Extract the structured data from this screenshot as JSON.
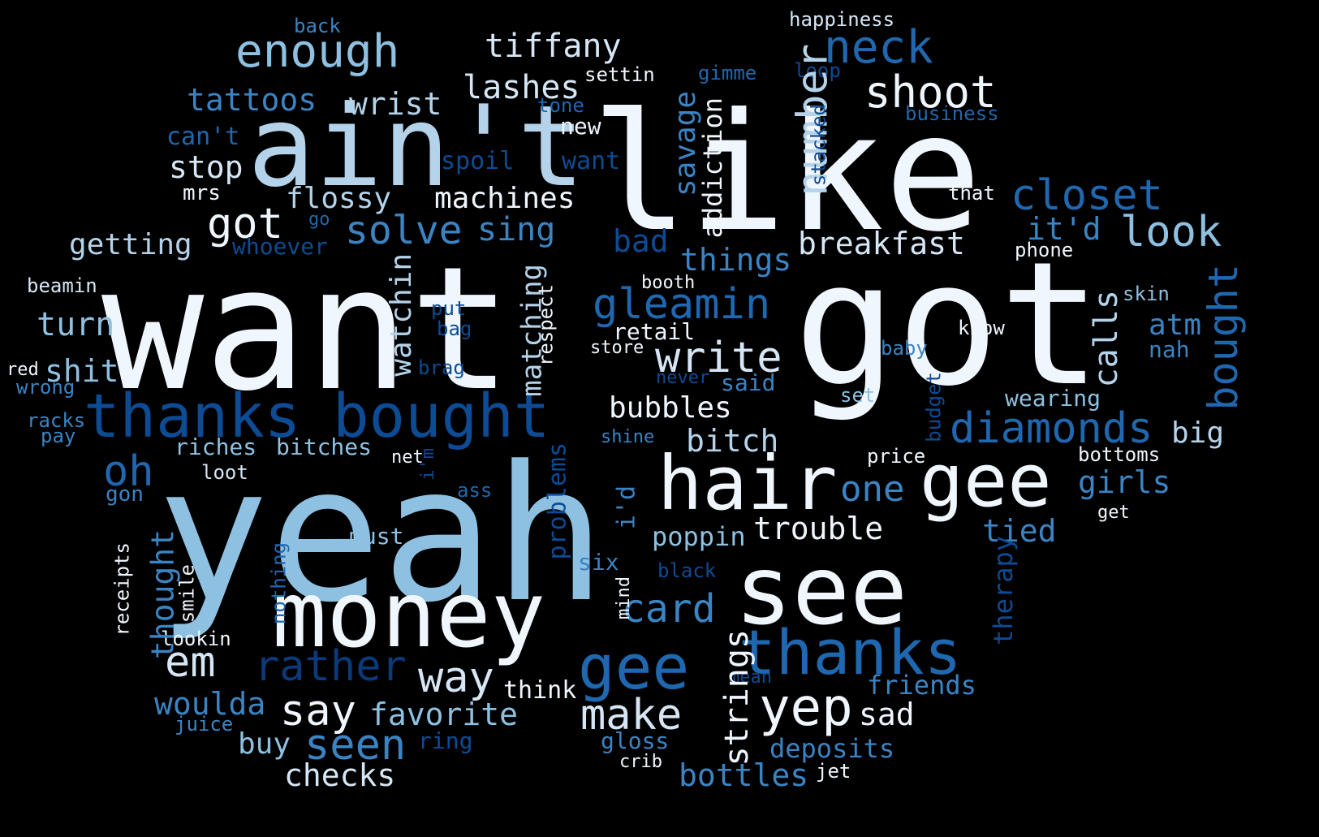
{
  "background": "#000000",
  "palette": {
    "white": "#f0f6fd",
    "pale": "#d6e6f5",
    "light": "#b4d3ea",
    "sky": "#8ec1e1",
    "mid": "#5ba3d2",
    "medium": "#3b84c3",
    "deep": "#1f68b0",
    "dark": "#0d4b94",
    "navy": "#0a3a7a"
  },
  "words": [
    {
      "text": "want",
      "color": "white"
    },
    {
      "text": "got",
      "color": "white"
    },
    {
      "text": "like",
      "color": "white"
    },
    {
      "text": "yeah",
      "color": "sky"
    },
    {
      "text": "ain't",
      "color": "light"
    },
    {
      "text": "money",
      "color": "white"
    },
    {
      "text": "see",
      "color": "white"
    },
    {
      "text": "hair",
      "color": "white"
    },
    {
      "text": "gee",
      "color": "white"
    },
    {
      "text": "thanks",
      "color": "deep"
    },
    {
      "text": "gee",
      "color": "deep"
    },
    {
      "text": "thanks",
      "color": "dark"
    },
    {
      "text": "bought",
      "color": "dark"
    },
    {
      "text": "enough",
      "color": "sky"
    },
    {
      "text": "neck",
      "color": "deep"
    },
    {
      "text": "shoot",
      "color": "white"
    },
    {
      "text": "tiffany",
      "color": "pale"
    },
    {
      "text": "lashes",
      "color": "pale"
    },
    {
      "text": "closet",
      "color": "deep"
    },
    {
      "text": "look",
      "color": "sky"
    },
    {
      "text": "gleamin",
      "color": "deep"
    },
    {
      "text": "write",
      "color": "pale"
    },
    {
      "text": "diamonds",
      "color": "deep"
    },
    {
      "text": "yep",
      "color": "white"
    },
    {
      "text": "rather",
      "color": "navy"
    },
    {
      "text": "way",
      "color": "pale"
    },
    {
      "text": "make",
      "color": "pale"
    },
    {
      "text": "say",
      "color": "white"
    },
    {
      "text": "seen",
      "color": "medium"
    },
    {
      "text": "em",
      "color": "pale"
    },
    {
      "text": "oh",
      "color": "deep"
    },
    {
      "text": "got",
      "color": "white"
    },
    {
      "text": "solve",
      "color": "medium"
    },
    {
      "text": "sing",
      "color": "medium"
    },
    {
      "text": "card",
      "color": "medium"
    },
    {
      "text": "breakfast",
      "color": "pale"
    },
    {
      "text": "tattoos",
      "color": "medium"
    },
    {
      "text": "wrist",
      "color": "light"
    },
    {
      "text": "stop",
      "color": "pale"
    },
    {
      "text": "flossy",
      "color": "light"
    },
    {
      "text": "machines",
      "color": "white"
    },
    {
      "text": "getting",
      "color": "light"
    },
    {
      "text": "turn",
      "color": "sky"
    },
    {
      "text": "shit",
      "color": "sky"
    },
    {
      "text": "bubbles",
      "color": "white"
    },
    {
      "text": "bitch",
      "color": "light"
    },
    {
      "text": "big",
      "color": "light"
    },
    {
      "text": "one",
      "color": "medium"
    },
    {
      "text": "girls",
      "color": "medium"
    },
    {
      "text": "tied",
      "color": "medium"
    },
    {
      "text": "trouble",
      "color": "white"
    },
    {
      "text": "poppin",
      "color": "sky"
    },
    {
      "text": "favorite",
      "color": "sky"
    },
    {
      "text": "woulda",
      "color": "medium"
    },
    {
      "text": "buy",
      "color": "sky"
    },
    {
      "text": "checks",
      "color": "pale"
    },
    {
      "text": "bottles",
      "color": "medium"
    },
    {
      "text": "deposits",
      "color": "medium"
    },
    {
      "text": "friends",
      "color": "medium"
    },
    {
      "text": "sad",
      "color": "white"
    },
    {
      "text": "think",
      "color": "white"
    },
    {
      "text": "things",
      "color": "medium"
    },
    {
      "text": "bad",
      "color": "dark"
    },
    {
      "text": "it'd",
      "color": "medium"
    },
    {
      "text": "atm",
      "color": "medium"
    },
    {
      "text": "nah",
      "color": "medium"
    },
    {
      "text": "wearing",
      "color": "sky"
    },
    {
      "text": "retail",
      "color": "white"
    },
    {
      "text": "must",
      "color": "sky"
    },
    {
      "text": "riches",
      "color": "sky"
    },
    {
      "text": "bitches",
      "color": "sky"
    },
    {
      "text": "six",
      "color": "medium"
    },
    {
      "text": "ring",
      "color": "dark"
    },
    {
      "text": "gloss",
      "color": "medium"
    },
    {
      "text": "new",
      "color": "white"
    },
    {
      "text": "can't",
      "color": "deep"
    },
    {
      "text": "spoil",
      "color": "dark"
    },
    {
      "text": "want",
      "color": "dark"
    },
    {
      "text": "whoever",
      "color": "dark"
    },
    {
      "text": "mrs",
      "color": "white"
    },
    {
      "text": "back",
      "color": "medium"
    },
    {
      "text": "happiness",
      "color": "pale"
    },
    {
      "text": "gimme",
      "color": "deep"
    },
    {
      "text": "loop",
      "color": "dark"
    },
    {
      "text": "settin",
      "color": "white"
    },
    {
      "text": "tone",
      "color": "deep"
    },
    {
      "text": "business",
      "color": "deep"
    },
    {
      "text": "that",
      "color": "white"
    },
    {
      "text": "phone",
      "color": "white"
    },
    {
      "text": "beamin",
      "color": "pale"
    },
    {
      "text": "booth",
      "color": "white"
    },
    {
      "text": "skin",
      "color": "sky"
    },
    {
      "text": "know",
      "color": "white"
    },
    {
      "text": "store",
      "color": "white"
    },
    {
      "text": "baby",
      "color": "medium"
    },
    {
      "text": "never",
      "color": "dark"
    },
    {
      "text": "said",
      "color": "medium"
    },
    {
      "text": "set",
      "color": "sky"
    },
    {
      "text": "red",
      "color": "white"
    },
    {
      "text": "wrong",
      "color": "medium"
    },
    {
      "text": "racks",
      "color": "medium"
    },
    {
      "text": "pay",
      "color": "medium"
    },
    {
      "text": "put",
      "color": "dark"
    },
    {
      "text": "bag",
      "color": "dark"
    },
    {
      "text": "brag",
      "color": "dark"
    },
    {
      "text": "loot",
      "color": "pale"
    },
    {
      "text": "gon",
      "color": "medium"
    },
    {
      "text": "net",
      "color": "white"
    },
    {
      "text": "ass",
      "color": "deep"
    },
    {
      "text": "shine",
      "color": "medium"
    },
    {
      "text": "price",
      "color": "white"
    },
    {
      "text": "bottoms",
      "color": "white"
    },
    {
      "text": "get",
      "color": "white"
    },
    {
      "text": "black",
      "color": "dark"
    },
    {
      "text": "lookin",
      "color": "white"
    },
    {
      "text": "juice",
      "color": "medium"
    },
    {
      "text": "mean",
      "color": "dark"
    },
    {
      "text": "crib",
      "color": "white"
    },
    {
      "text": "jet",
      "color": "white"
    },
    {
      "text": "go",
      "color": "deep"
    },
    {
      "text": "savage",
      "color": "medium"
    },
    {
      "text": "number",
      "color": "light"
    },
    {
      "text": "addiction",
      "color": "white"
    },
    {
      "text": "stacked",
      "color": "dark"
    },
    {
      "text": "bought",
      "color": "deep"
    },
    {
      "text": "calls",
      "color": "light"
    },
    {
      "text": "watchin",
      "color": "light"
    },
    {
      "text": "matching",
      "color": "light"
    },
    {
      "text": "respect",
      "color": "white"
    },
    {
      "text": "budget",
      "color": "dark"
    },
    {
      "text": "therapy",
      "color": "dark"
    },
    {
      "text": "strings",
      "color": "white"
    },
    {
      "text": "thought",
      "color": "medium"
    },
    {
      "text": "receipts",
      "color": "white"
    },
    {
      "text": "smile",
      "color": "white"
    },
    {
      "text": "nothing",
      "color": "deep"
    },
    {
      "text": "problems",
      "color": "dark"
    },
    {
      "text": "i'm",
      "color": "dark"
    },
    {
      "text": "i'd",
      "color": "medium"
    },
    {
      "text": "mind",
      "color": "white"
    }
  ]
}
